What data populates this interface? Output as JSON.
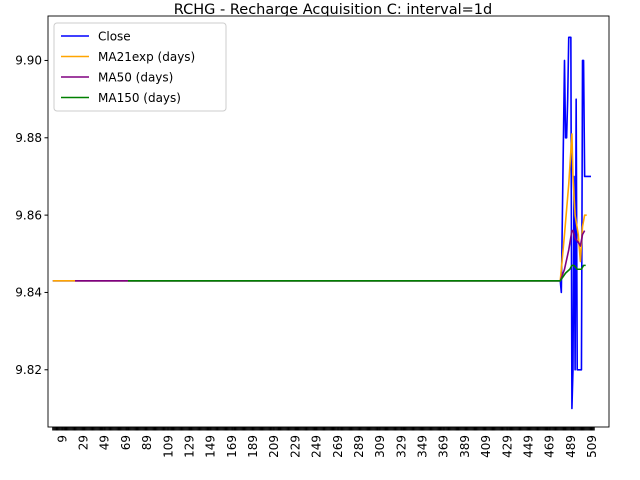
{
  "chart_data": {
    "type": "line",
    "title": "RCHG - Recharge Acquisition C: interval=1d",
    "xlabel": "",
    "ylabel": "",
    "xlim": [
      -4.5,
      525
    ],
    "ylim": [
      9.8052,
      9.9115
    ],
    "x_ticks": [
      9,
      29,
      49,
      69,
      89,
      109,
      129,
      149,
      169,
      189,
      209,
      229,
      249,
      269,
      289,
      309,
      329,
      349,
      369,
      389,
      409,
      429,
      449,
      469,
      489,
      509
    ],
    "x_tick_start": 0,
    "x_tick_end": 511,
    "y_ticks": [
      9.82,
      9.84,
      9.86,
      9.88,
      9.9
    ],
    "y_tick_labels": [
      "9.82",
      "9.84",
      "9.86",
      "9.88",
      "9.90"
    ],
    "legend": {
      "position": "upper-left",
      "entries": [
        "Close",
        "MA21exp (days)",
        "MA50 (days)",
        "MA150 (days)"
      ]
    },
    "grid": false,
    "series": [
      {
        "name": "Close",
        "color": "#0000ff",
        "x": [
          0,
          479,
          480,
          481,
          482,
          483,
          484,
          485,
          486,
          487,
          488,
          489,
          490,
          491,
          492,
          493,
          494,
          495,
          496,
          497,
          498,
          499,
          500,
          501,
          502,
          503,
          504,
          505,
          506,
          507,
          508
        ],
        "y": [
          9.843,
          9.843,
          9.84,
          9.86,
          9.88,
          9.9,
          9.88,
          9.88,
          9.89,
          9.906,
          9.906,
          9.906,
          9.81,
          9.82,
          9.87,
          9.82,
          9.89,
          9.82,
          9.82,
          9.82,
          9.82,
          9.82,
          9.9,
          9.9,
          9.87,
          9.87,
          9.87,
          9.87,
          9.87,
          9.87,
          9.87
        ]
      },
      {
        "name": "MA21exp (days)",
        "color": "#ffa500",
        "x": [
          0,
          479,
          483,
          487,
          490,
          491,
          493,
          496,
          498,
          500,
          502,
          504
        ],
        "y": [
          9.843,
          9.843,
          9.855,
          9.868,
          9.881,
          9.87,
          9.86,
          9.855,
          9.848,
          9.857,
          9.86,
          9.86
        ]
      },
      {
        "name": "MA50 (days)",
        "color": "#800080",
        "x": [
          21,
          479,
          483,
          487,
          490,
          491,
          493,
          496,
          498,
          500,
          502
        ],
        "y": [
          9.843,
          9.843,
          9.846,
          9.851,
          9.856,
          9.856,
          9.854,
          9.853,
          9.852,
          9.855,
          9.856
        ]
      },
      {
        "name": "MA150 (days)",
        "color": "#008000",
        "x": [
          71,
          479,
          484,
          488,
          490,
          492,
          495,
          497,
          499,
          501,
          503
        ],
        "y": [
          9.843,
          9.843,
          9.845,
          9.846,
          9.847,
          9.847,
          9.846,
          9.846,
          9.846,
          9.847,
          9.847
        ]
      }
    ]
  }
}
